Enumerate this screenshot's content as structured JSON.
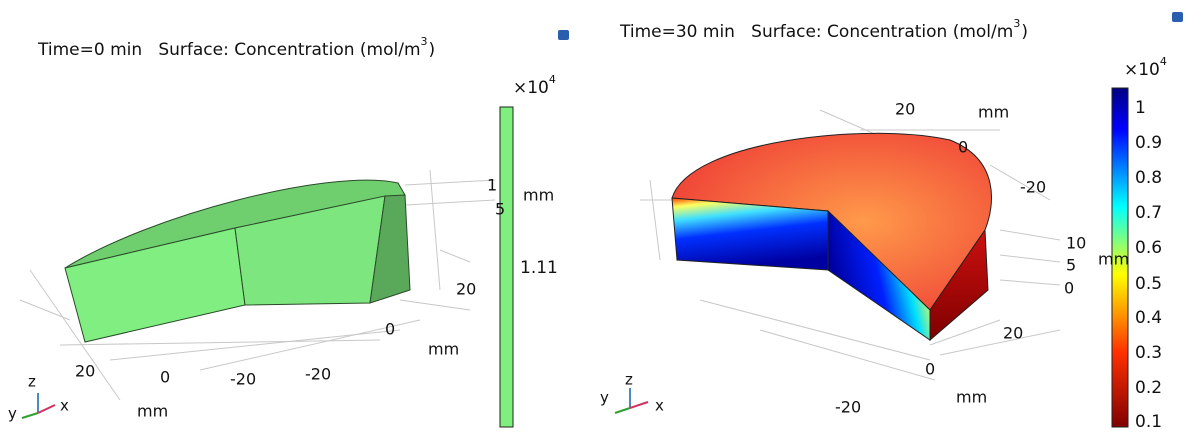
{
  "panels": [
    {
      "title": "Time=0 min   Surface: Concentration (mol/m",
      "title_sup": "3",
      "title_end": ")",
      "colorbar": {
        "multiplier": "×10",
        "exponent": "4",
        "ticks": [
          "1.11"
        ]
      },
      "axis_labels": [
        "20",
        "0",
        "-20",
        "-20",
        "mm",
        "0",
        "20",
        "mm",
        "1",
        "5",
        "mm"
      ],
      "triad": [
        "y",
        "z",
        "x"
      ]
    },
    {
      "title": "Time=30 min   Surface: Concentration (mol/m",
      "title_sup": "3",
      "title_end": ")",
      "colorbar": {
        "multiplier": "×10",
        "exponent": "4",
        "ticks": [
          "1",
          "0.9",
          "0.8",
          "0.7",
          "0.6",
          "0.5",
          "0.4",
          "0.3",
          "0.2",
          "0.1"
        ]
      },
      "axis_labels": [
        "20",
        "mm",
        "0",
        "-20",
        "10",
        "5",
        "0",
        "mm",
        "20",
        "0",
        "mm",
        "-20"
      ],
      "triad": [
        "y",
        "z",
        "x"
      ]
    }
  ]
}
